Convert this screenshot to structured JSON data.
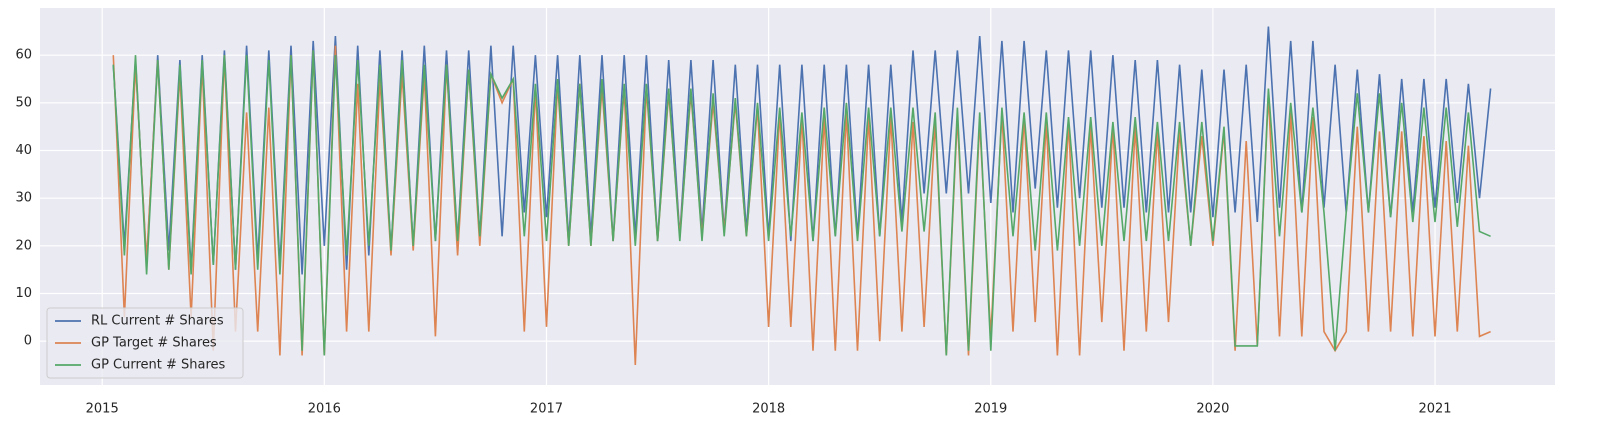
{
  "chart_data": {
    "type": "line",
    "x": [
      2015.05,
      2015.1,
      2015.15,
      2015.2,
      2015.25,
      2015.3,
      2015.35,
      2015.4,
      2015.45,
      2015.5,
      2015.55,
      2015.6,
      2015.65,
      2015.7,
      2015.75,
      2015.8,
      2015.85,
      2015.9,
      2015.95,
      2016.0,
      2016.05,
      2016.1,
      2016.15,
      2016.2,
      2016.25,
      2016.3,
      2016.35,
      2016.4,
      2016.45,
      2016.5,
      2016.55,
      2016.6,
      2016.65,
      2016.7,
      2016.75,
      2016.8,
      2016.85,
      2016.9,
      2016.95,
      2017.0,
      2017.05,
      2017.1,
      2017.15,
      2017.2,
      2017.25,
      2017.3,
      2017.35,
      2017.4,
      2017.45,
      2017.5,
      2017.55,
      2017.6,
      2017.65,
      2017.7,
      2017.75,
      2017.8,
      2017.85,
      2017.9,
      2017.95,
      2018.0,
      2018.05,
      2018.1,
      2018.15,
      2018.2,
      2018.25,
      2018.3,
      2018.35,
      2018.4,
      2018.45,
      2018.5,
      2018.55,
      2018.6,
      2018.65,
      2018.7,
      2018.75,
      2018.8,
      2018.85,
      2018.9,
      2018.95,
      2019.0,
      2019.05,
      2019.1,
      2019.15,
      2019.2,
      2019.25,
      2019.3,
      2019.35,
      2019.4,
      2019.45,
      2019.5,
      2019.55,
      2019.6,
      2019.65,
      2019.7,
      2019.75,
      2019.8,
      2019.85,
      2019.9,
      2019.95,
      2020.0,
      2020.05,
      2020.1,
      2020.15,
      2020.2,
      2020.25,
      2020.3,
      2020.35,
      2020.4,
      2020.45,
      2020.5,
      2020.55,
      2020.6,
      2020.65,
      2020.7,
      2020.75,
      2020.8,
      2020.85,
      2020.9,
      2020.95,
      2021.0,
      2021.05,
      2021.1,
      2021.15,
      2021.2,
      2021.25
    ],
    "series": [
      {
        "name": "RL Current # Shares",
        "color": "#4c72b0",
        "values": [
          58,
          20,
          59,
          16,
          60,
          19,
          59,
          15,
          60,
          16,
          61,
          15,
          62,
          17,
          61,
          16,
          62,
          14,
          63,
          20,
          64,
          15,
          62,
          18,
          61,
          19,
          61,
          20,
          62,
          21,
          61,
          21,
          61,
          22,
          62,
          22,
          62,
          27,
          60,
          26,
          60,
          21,
          60,
          22,
          60,
          21,
          60,
          22,
          60,
          21,
          59,
          22,
          59,
          23,
          59,
          23,
          58,
          23,
          58,
          22,
          58,
          21,
          58,
          21,
          58,
          22,
          58,
          22,
          58,
          22,
          58,
          25,
          61,
          31,
          61,
          31,
          61,
          31,
          64,
          29,
          63,
          27,
          63,
          32,
          61,
          28,
          61,
          30,
          61,
          28,
          60,
          28,
          59,
          27,
          59,
          27,
          58,
          27,
          57,
          26,
          57,
          27,
          58,
          25,
          66,
          28,
          63,
          27,
          63,
          28,
          58,
          27,
          57,
          27,
          56,
          26,
          55,
          27,
          55,
          28,
          55,
          29,
          54,
          30,
          53
        ]
      },
      {
        "name": "GP Target # Shares",
        "color": "#dd8452",
        "values": [
          60,
          5,
          58,
          17,
          59,
          15,
          56,
          5,
          58,
          -2,
          60,
          2,
          48,
          2,
          49,
          -3,
          60,
          -3,
          61,
          -3,
          62,
          2,
          54,
          2,
          55,
          18,
          56,
          19,
          56,
          1,
          58,
          18,
          57,
          20,
          56,
          50,
          55,
          2,
          53,
          3,
          54,
          20,
          54,
          20,
          53,
          21,
          53,
          -5,
          53,
          21,
          52,
          22,
          52,
          22,
          50,
          23,
          50,
          22,
          49,
          3,
          48,
          3,
          47,
          -2,
          47,
          -2,
          48,
          -2,
          47,
          0,
          47,
          2,
          46,
          3,
          46,
          -3,
          47,
          -3,
          46,
          1,
          48,
          2,
          47,
          4,
          46,
          -3,
          46,
          -3,
          45,
          4,
          45,
          -2,
          45,
          2,
          44,
          4,
          44,
          20,
          43,
          20,
          44,
          -2,
          42,
          -1,
          52,
          1,
          48,
          1,
          47,
          2,
          -2,
          2,
          45,
          2,
          44,
          2,
          44,
          1,
          43,
          1,
          42,
          2,
          41,
          1,
          2
        ]
      },
      {
        "name": "GP Current # Shares",
        "color": "#55a868",
        "values": [
          58,
          18,
          60,
          14,
          59,
          15,
          58,
          14,
          59,
          16,
          60,
          15,
          60,
          15,
          59,
          14,
          60,
          -2,
          61,
          -3,
          60,
          18,
          59,
          20,
          58,
          19,
          59,
          20,
          58,
          21,
          58,
          21,
          57,
          22,
          56,
          51,
          55,
          22,
          54,
          21,
          55,
          20,
          54,
          20,
          55,
          21,
          54,
          20,
          54,
          21,
          53,
          21,
          53,
          21,
          52,
          22,
          51,
          22,
          50,
          21,
          49,
          22,
          48,
          21,
          49,
          22,
          50,
          21,
          49,
          22,
          49,
          23,
          49,
          23,
          48,
          -3,
          49,
          -2,
          48,
          -2,
          49,
          22,
          48,
          19,
          48,
          19,
          47,
          20,
          47,
          20,
          46,
          21,
          47,
          21,
          46,
          21,
          46,
          20,
          46,
          21,
          45,
          -1,
          -1,
          -1,
          53,
          22,
          50,
          27,
          49,
          27,
          -2,
          27,
          52,
          27,
          52,
          26,
          50,
          25,
          49,
          25,
          49,
          24,
          48,
          23,
          22
        ]
      }
    ],
    "xlim": [
      2014.72,
      2021.54
    ],
    "xticks": [
      2015,
      2016,
      2017,
      2018,
      2019,
      2020,
      2021
    ],
    "ylim": [
      -9.2,
      69.9
    ],
    "yticks": [
      0,
      10,
      20,
      30,
      40,
      50,
      60
    ],
    "grid": true,
    "legend": "lower left"
  }
}
